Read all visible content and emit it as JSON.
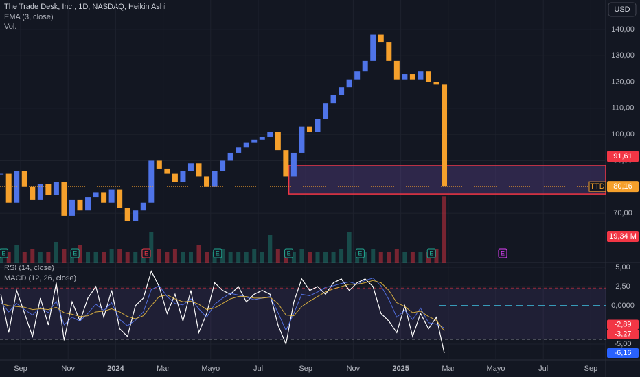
{
  "chart_data": {
    "type": "candlestick",
    "title": "The Trade Desk, Inc., 1D, NASDAQ, Heikin Ashi",
    "legends": [
      "EMA (3, close)",
      "Vol."
    ],
    "currency": "USD",
    "up_color": "#4f74e8",
    "down_color": "#f5a02c",
    "x": [
      "2023-08",
      "2023-08",
      "2023-08",
      "2023-09",
      "2023-09",
      "2023-09",
      "2023-10",
      "2023-10",
      "2023-10",
      "2023-11",
      "2023-11",
      "2023-11",
      "2023-12",
      "2023-12",
      "2023-12",
      "2024-01",
      "2024-01",
      "2024-01",
      "2024-02",
      "2024-02",
      "2024-02",
      "2024-03",
      "2024-03",
      "2024-03",
      "2024-04",
      "2024-04",
      "2024-04",
      "2024-05",
      "2024-05",
      "2024-05",
      "2024-06",
      "2024-06",
      "2024-06",
      "2024-07",
      "2024-07",
      "2024-07",
      "2024-08",
      "2024-08",
      "2024-08",
      "2024-09",
      "2024-09",
      "2024-09",
      "2024-10",
      "2024-10",
      "2024-10",
      "2024-11",
      "2024-11",
      "2024-11",
      "2024-12",
      "2024-12",
      "2024-12",
      "2025-01",
      "2025-01",
      "2025-01",
      "2025-02",
      "2025-02",
      "2025-02"
    ],
    "close": [
      85,
      74,
      86,
      80,
      75,
      81,
      77,
      82,
      69,
      75,
      71,
      76,
      78,
      74,
      79,
      72,
      67,
      71,
      74,
      90,
      87,
      85,
      82,
      86,
      89,
      84,
      80,
      86,
      90,
      93,
      95,
      97,
      98,
      99,
      101,
      94,
      84,
      93,
      103,
      101,
      106,
      112,
      115,
      118,
      121,
      124,
      128,
      138,
      135,
      128,
      121,
      123,
      121,
      124,
      120,
      119,
      80.16
    ],
    "volume": [
      4,
      3,
      5,
      3,
      4,
      3,
      3,
      6,
      4,
      3,
      5,
      3,
      3,
      3,
      4,
      4,
      3,
      3,
      4,
      9,
      4,
      3,
      4,
      3,
      3,
      5,
      3,
      3,
      4,
      3,
      3,
      3,
      4,
      3,
      8,
      4,
      3,
      3,
      4,
      3,
      3,
      3,
      3,
      4,
      9,
      3,
      3,
      4,
      3,
      3,
      4,
      3,
      3,
      3,
      3,
      4,
      19.34
    ],
    "volume_ylim": [
      0,
      40
    ],
    "volume_label": "19,34 M",
    "ylim": [
      50.7,
      151.2
    ],
    "yticks": [
      {
        "value": 70,
        "label": "70,00"
      },
      {
        "value": 90,
        "label": "90,00"
      },
      {
        "value": 100,
        "label": "100,00"
      },
      {
        "value": 110,
        "label": "110,00"
      },
      {
        "value": 120,
        "label": "120,00"
      },
      {
        "value": 130,
        "label": "130,00"
      },
      {
        "value": 140,
        "label": "140,00"
      }
    ],
    "xticks": [
      {
        "value": "2023-09",
        "label": "Sep"
      },
      {
        "value": "2023-11",
        "label": "Nov"
      },
      {
        "value": "2024-01",
        "label": "2024"
      },
      {
        "value": "2024-03",
        "label": "Mar"
      },
      {
        "value": "2024-05",
        "label": "Mayo"
      },
      {
        "value": "2024-07",
        "label": "Jul"
      },
      {
        "value": "2024-09",
        "label": "Sep"
      },
      {
        "value": "2024-11",
        "label": "Nov"
      },
      {
        "value": "2025-01",
        "label": "2025"
      },
      {
        "value": "2025-03",
        "label": "Mar"
      },
      {
        "value": "2025-05",
        "label": "Mayo"
      },
      {
        "value": "2025-07",
        "label": "Jul"
      },
      {
        "value": "2025-09",
        "label": "Sep"
      }
    ],
    "price_tags": [
      {
        "value": 91.61,
        "label": "91,61",
        "color": "#f23645"
      },
      {
        "value": 80.16,
        "label": "80,16",
        "name": "TTD",
        "color": "#f5a02c"
      }
    ],
    "zone": {
      "x": "2024-08",
      "low": 77.3,
      "high": 88.3,
      "color": "#f23645"
    },
    "events": [
      {
        "x": "2023-08",
        "label": "E",
        "color": "#22ab94"
      },
      {
        "x": "2023-11",
        "label": "E",
        "color": "#22ab94"
      },
      {
        "x": "2024-02",
        "label": "E",
        "color": "#f23645"
      },
      {
        "x": "2024-05",
        "label": "E",
        "color": "#22ab94"
      },
      {
        "x": "2024-08",
        "label": "E",
        "color": "#22ab94"
      },
      {
        "x": "2024-11",
        "label": "E",
        "color": "#22ab94"
      },
      {
        "x": "2025-02",
        "label": "E",
        "color": "#22ab94"
      },
      {
        "x": "2025-05",
        "label": "E",
        "color": "#e040fb"
      }
    ],
    "indicators": [
      "RSI (14, close)",
      "MACD (12, 26, close)"
    ],
    "y2lim": [
      -7.05,
      5.63
    ],
    "y2ticks": [
      {
        "value": 5,
        "label": "5,00"
      },
      {
        "value": 2.5,
        "label": "2,50"
      },
      {
        "value": 0,
        "label": "0,0000"
      },
      {
        "value": -5,
        "label": "-5,00"
      }
    ],
    "levels": [
      2.3,
      -4.4
    ],
    "lines": [
      {
        "color": "#ffffff",
        "values": [
          1.5,
          -3.5,
          2.0,
          -1.0,
          -4.0,
          1.0,
          -2.5,
          3.0,
          -4.5,
          0.5,
          -2.0,
          1.0,
          2.5,
          -1.5,
          2.0,
          -3.0,
          -4.0,
          0.0,
          1.0,
          4.5,
          2.5,
          -1.0,
          1.5,
          -2.0,
          2.0,
          -3.5,
          -1.0,
          3.0,
          2.0,
          1.5,
          2.5,
          0.5,
          1.5,
          2.0,
          1.5,
          -2.5,
          -5.0,
          0.5,
          3.5,
          2.0,
          2.5,
          1.5,
          3.0,
          3.5,
          2.0,
          3.0,
          3.5,
          2.5,
          -1.0,
          -2.0,
          -3.5,
          0.0,
          -4.0,
          -1.0,
          -3.0,
          -1.5,
          -6.16
        ]
      },
      {
        "color": "#5b7cfa",
        "values": [
          0.5,
          -0.8,
          0.3,
          -0.5,
          -1.2,
          -0.2,
          -0.9,
          0.6,
          -2.5,
          -1.5,
          -2.0,
          -1.0,
          0.2,
          -0.6,
          0.4,
          -1.8,
          -2.6,
          -1.9,
          -0.8,
          2.1,
          2.6,
          1.2,
          0.3,
          0.1,
          0.9,
          -0.4,
          -1.5,
          0.2,
          1.0,
          1.6,
          1.4,
          1.1,
          0.8,
          1.0,
          1.2,
          -0.9,
          -3.2,
          -1.0,
          1.5,
          1.3,
          1.8,
          2.4,
          2.6,
          2.9,
          3.1,
          2.8,
          3.3,
          3.6,
          2.6,
          0.8,
          -1.5,
          -0.6,
          -1.8,
          -0.3,
          -2.2,
          -2.4,
          -2.89
        ]
      },
      {
        "color": "#f5c542",
        "values": [
          0.3,
          0.0,
          -0.1,
          -0.2,
          -0.5,
          -0.4,
          -0.5,
          -0.2,
          -0.9,
          -1.1,
          -1.4,
          -1.3,
          -0.8,
          -0.7,
          -0.4,
          -0.8,
          -1.4,
          -1.7,
          -1.3,
          0.0,
          1.2,
          1.4,
          0.9,
          0.5,
          0.6,
          0.2,
          -0.5,
          -0.3,
          0.3,
          0.9,
          1.2,
          1.2,
          1.0,
          1.0,
          1.1,
          0.3,
          -1.2,
          -1.3,
          -0.1,
          0.6,
          1.2,
          1.8,
          2.2,
          2.5,
          2.8,
          2.8,
          3.0,
          3.3,
          3.0,
          2.0,
          0.4,
          -0.1,
          -0.9,
          -0.7,
          -1.4,
          -1.9,
          -3.27
        ]
      }
    ],
    "y2_tags": [
      {
        "value": -2.89,
        "label": "-2,89",
        "color": "#f23645"
      },
      {
        "value": -3.27,
        "label": "-3,27",
        "color": "#f23645"
      },
      {
        "value": -6.16,
        "label": "-6,16",
        "color": "#2962ff"
      }
    ]
  }
}
